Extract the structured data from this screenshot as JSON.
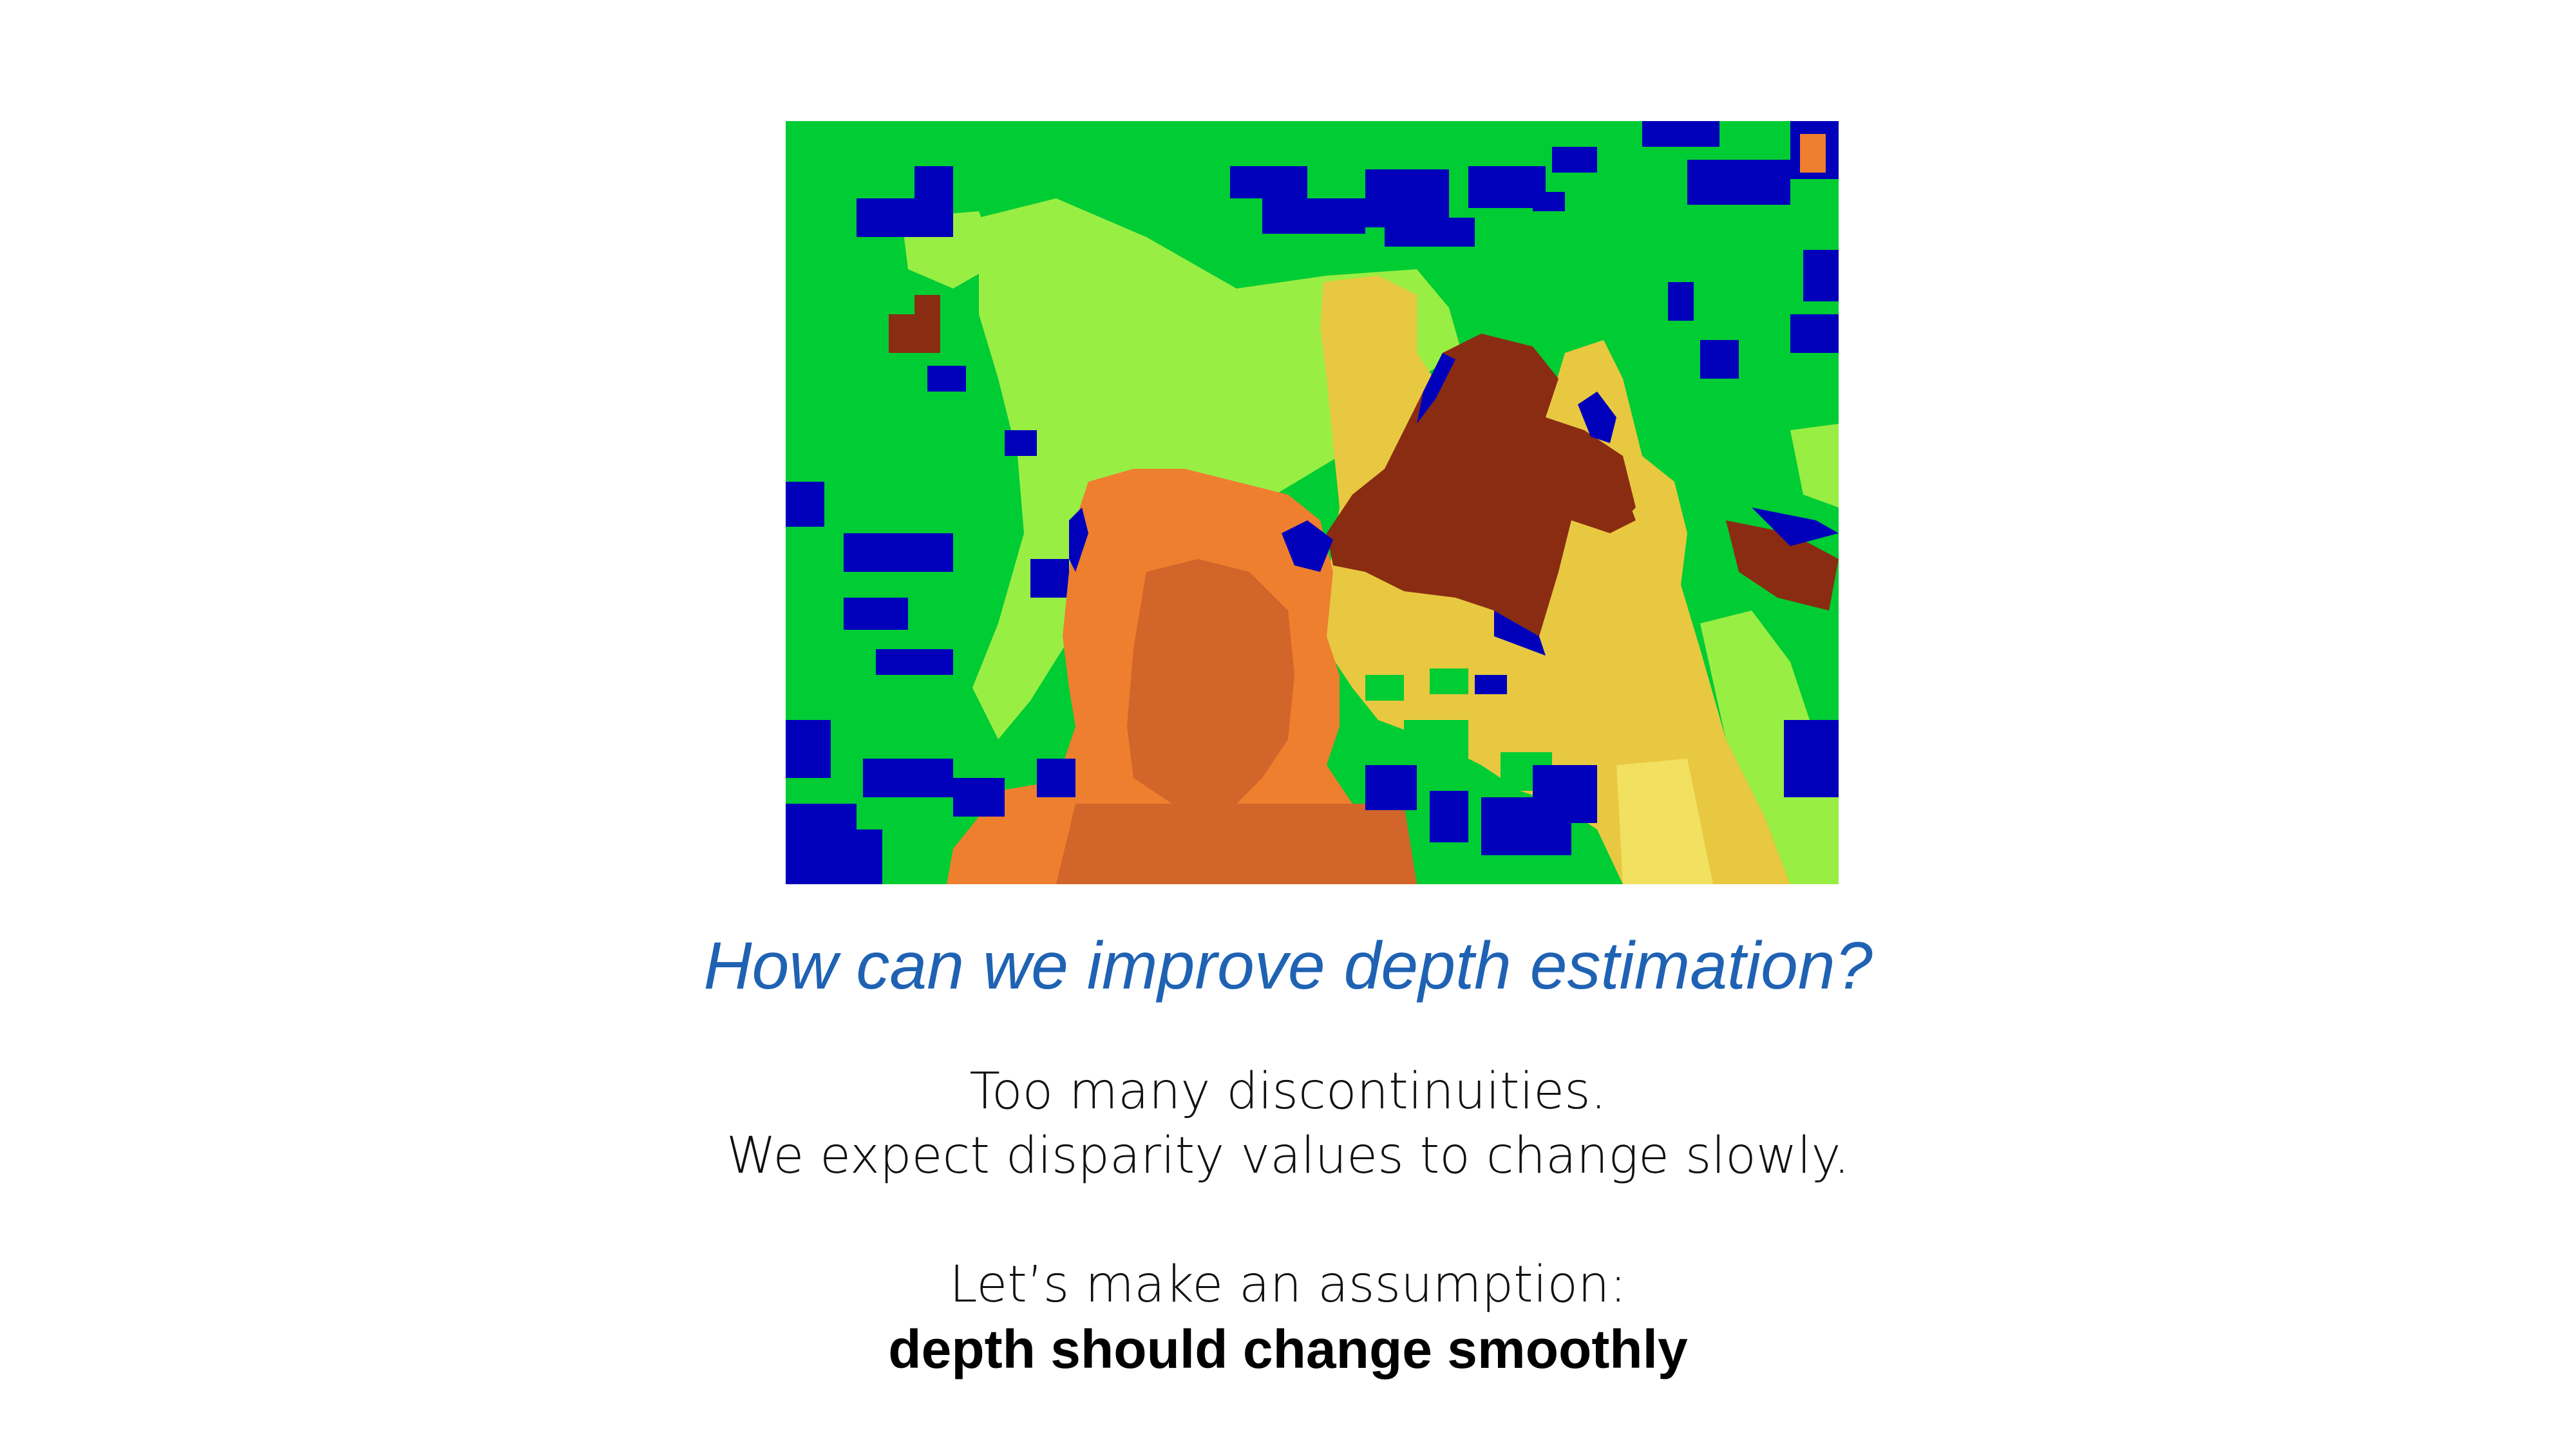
{
  "slide": {
    "title": "How can we improve depth estimation?",
    "lines": [
      "Too many discontinuities.",
      "We expect disparity values to change slowly.",
      "Let’s make an assumption:",
      "depth should change smoothly"
    ]
  },
  "colors": {
    "title": "#1f62b3",
    "disparity_palette": [
      "#00cc33",
      "#99ee44",
      "#0000bb",
      "#ee7f2e",
      "#d2652a",
      "#e8c840",
      "#8a2c12",
      "#f2e060"
    ]
  }
}
